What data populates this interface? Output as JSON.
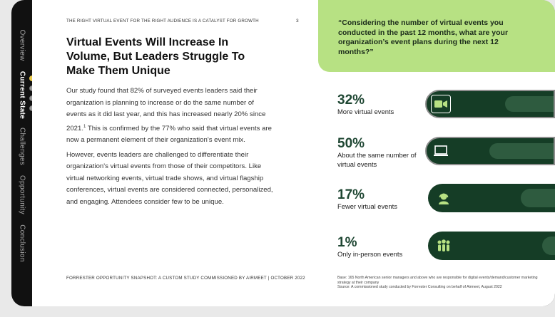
{
  "nav": {
    "items": [
      "Overview",
      "Current State",
      "Challenges",
      "Opportunity",
      "Conclusion"
    ]
  },
  "header": {
    "running_head": "THE RIGHT VIRTUAL EVENT FOR THE RIGHT AUDIENCE IS A CATALYST FOR GROWTH",
    "page_number": "3"
  },
  "title": "Virtual Events Will Increase In Volume, But Leaders Struggle To Make Them Unique",
  "body": {
    "p1": "Our study found that 82% of surveyed events leaders said their organization is planning to increase or do the same number of events as it did last year, and this has increased nearly 20% since 2021.",
    "p1_sup": "1",
    "p1_end": " This is confirmed by the 77% who said that virtual events are now a permanent element of their organization's event mix.",
    "p2": "However, events leaders are challenged to differentiate their organization's virtual events from those of their competitors. Like virtual networking events, virtual trade shows, and virtual flagship conferences, virtual events are considered connected, personalized, and engaging. Attendees consider few to be unique."
  },
  "footer": "FORRESTER OPPORTUNITY SNAPSHOT: A CUSTOM STUDY COMMISSIONED BY AIRMEET | OCTOBER 2022",
  "question": "“Considering the number of virtual events you conducted in the past 12 months, what are your organization’s event plans during the next 12 months?”",
  "stats": [
    {
      "value": "32%",
      "label": "More virtual events",
      "icon": "video-camera-icon"
    },
    {
      "value": "50%",
      "label": "About the same number of virtual events",
      "icon": "laptop-icon"
    },
    {
      "value": "17%",
      "label": "Fewer virtual events",
      "icon": "headset-person-icon"
    },
    {
      "value": "1%",
      "label": "Only in-person events",
      "icon": "group-people-icon"
    }
  ],
  "base_note": {
    "line1": "Base: 165 North American senior managers and above who are responsible for digital events/demand/customer marketing strategy at their company",
    "line2": "Source: A commissioned study conducted by Forrester Consulting on behalf of Airmeet, August 2022"
  },
  "colors": {
    "accent_green": "#b7e183",
    "dark_green": "#153d26",
    "stat_number": "#1f4733",
    "active_dot": "#e9c94a"
  }
}
